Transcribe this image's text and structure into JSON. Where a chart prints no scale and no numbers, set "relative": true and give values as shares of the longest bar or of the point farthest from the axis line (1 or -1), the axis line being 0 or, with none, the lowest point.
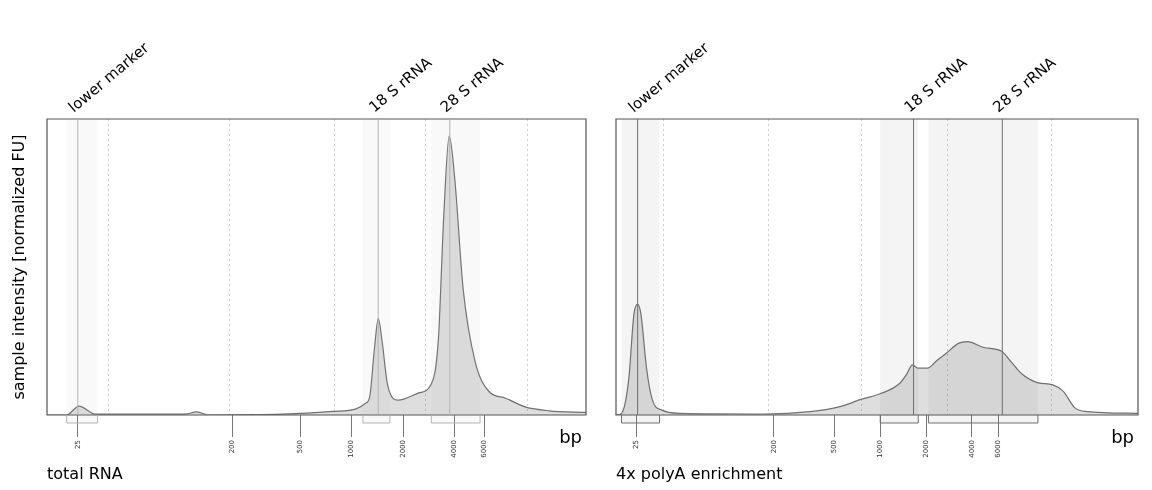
{
  "chart_data": [
    {
      "type": "area",
      "title": "total RNA",
      "xlabel": "bp",
      "ylabel": "sample intensity [normalized FU]",
      "relative": true,
      "grid": "x",
      "log": "x",
      "xlim": [
        16.5,
        23500
      ],
      "xticks": [
        25,
        200,
        500,
        1000,
        2000,
        4000,
        6000,
        {
          "value": 37.8,
          "label": null
        },
        {
          "value": 194,
          "label": null
        },
        {
          "value": 792,
          "label": null
        },
        {
          "value": 2718,
          "label": null
        },
        {
          "value": 10740,
          "label": null
        }
      ],
      "series": [
        {
          "color": "#707070",
          "x": [
            16.5,
            21.5,
            25.4,
            31.6,
            106,
            124,
            147,
            392,
            778,
            1062,
            1200,
            1276,
            1356,
            1432,
            1503,
            1627,
            1870,
            2472,
            2924,
            3215,
            3459,
            3722,
            4000,
            4498,
            5268,
            6339,
            7947,
            10450,
            14330,
            23500
          ],
          "values": [
            0,
            0,
            0.032,
            0.003,
            0.003,
            0.011,
            0,
            0.003,
            0.013,
            0.022,
            0.041,
            0.066,
            0.231,
            0.346,
            0.269,
            0.104,
            0.053,
            0.079,
            0.111,
            0.269,
            0.714,
            1.0,
            0.854,
            0.447,
            0.193,
            0.085,
            0.06,
            0.028,
            0.015,
            0.009
          ]
        }
      ],
      "ref_lines": [
        {
          "axis": "x",
          "value": 25,
          "label": "lower marker",
          "color": "#b4b4b4"
        },
        {
          "axis": "x",
          "value": 1430,
          "label": "18 S rRNA",
          "color": "#b4b4b4"
        },
        {
          "axis": "x",
          "value": 3750,
          "label": "28 S rRNA",
          "color": "#b4b4b4"
        }
      ],
      "bands": [
        {
          "axis": "x",
          "from": 21.5,
          "to": 32.6,
          "color": "#b4b4b4"
        },
        {
          "axis": "x",
          "from": 1164,
          "to": 1675,
          "color": "#b4b4b4"
        },
        {
          "axis": "x",
          "from": 2924,
          "to": 5640,
          "color": "#b4b4b4"
        }
      ]
    },
    {
      "type": "area",
      "title": "4x polyA enrichment",
      "xlabel": "bp",
      "relative": true,
      "grid": "x",
      "log": "x",
      "xlim": [
        18.3,
        49550
      ],
      "xticks": [
        25,
        200,
        500,
        1000,
        2000,
        4000,
        6000,
        {
          "value": 37.5,
          "label": null
        },
        {
          "value": 184,
          "label": null
        },
        {
          "value": 750,
          "label": null
        },
        {
          "value": 2763,
          "label": null
        },
        {
          "value": 13300,
          "label": null
        }
      ],
      "series": [
        {
          "color": "#707070",
          "x": [
            18.3,
            19.9,
            22.2,
            24.0,
            25.4,
            26.7,
            29.1,
            31.7,
            36.3,
            48.8,
            172,
            347,
            528,
            766,
            1000,
            1346,
            1494,
            1625,
            1767,
            2044,
            2360,
            2705,
            3266,
            3748,
            4797,
            6247,
            7280,
            8550,
            10810,
            13650,
            15920,
            19150,
            22860,
            49550
          ],
          "values": [
            0,
            0.015,
            0.323,
            0.908,
            1.0,
            0.908,
            0.415,
            0.138,
            0.046,
            0.015,
            0.009,
            0.031,
            0.071,
            0.145,
            0.191,
            0.286,
            0.369,
            0.452,
            0.422,
            0.422,
            0.492,
            0.554,
            0.646,
            0.662,
            0.609,
            0.578,
            0.477,
            0.369,
            0.292,
            0.271,
            0.215,
            0.062,
            0.031,
            0.015
          ]
        }
      ],
      "ref_lines": [
        {
          "axis": "x",
          "value": 25.4,
          "label": "lower marker",
          "color": "#6e6e6e"
        },
        {
          "axis": "x",
          "value": 1656,
          "label": "18 S rRNA",
          "color": "#6e6e6e"
        },
        {
          "axis": "x",
          "value": 6350,
          "label": "28 S rRNA",
          "color": "#6e6e6e"
        }
      ],
      "bands": [
        {
          "axis": "x",
          "from": 19.9,
          "to": 35.4,
          "color": "#6e6e6e"
        },
        {
          "axis": "x",
          "from": 1000,
          "to": 1778,
          "color": "#6e6e6e"
        },
        {
          "axis": "x",
          "from": 2074,
          "to": 10890,
          "color": "#6e6e6e"
        }
      ]
    }
  ]
}
